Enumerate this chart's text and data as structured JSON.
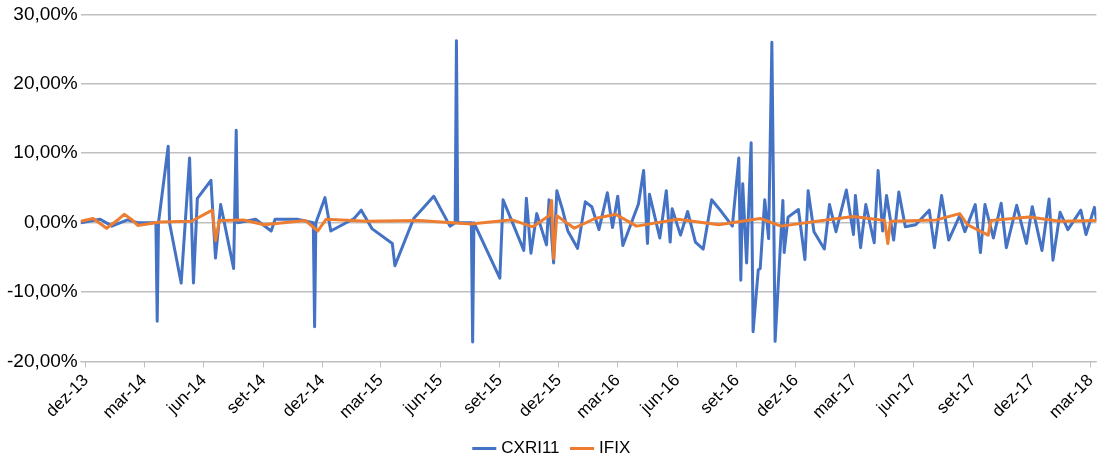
{
  "chart_data": {
    "type": "line",
    "xlim": [
      "2013-11-23",
      "2018-03-10"
    ],
    "ylim": [
      -20,
      30
    ],
    "xticks": [
      {
        "value": "2013-12-01",
        "label": "dez-13"
      },
      {
        "value": "2014-03-01",
        "label": "mar-14"
      },
      {
        "value": "2014-06-01",
        "label": "jun-14"
      },
      {
        "value": "2014-09-01",
        "label": "set-14"
      },
      {
        "value": "2014-12-01",
        "label": "dez-14"
      },
      {
        "value": "2015-03-01",
        "label": "mar-15"
      },
      {
        "value": "2015-06-01",
        "label": "jun-15"
      },
      {
        "value": "2015-09-01",
        "label": "set-15"
      },
      {
        "value": "2015-12-01",
        "label": "dez-15"
      },
      {
        "value": "2016-03-01",
        "label": "mar-16"
      },
      {
        "value": "2016-06-01",
        "label": "jun-16"
      },
      {
        "value": "2016-09-01",
        "label": "set-16"
      },
      {
        "value": "2016-12-01",
        "label": "dez-16"
      },
      {
        "value": "2017-03-01",
        "label": "mar-17"
      },
      {
        "value": "2017-06-01",
        "label": "jun-17"
      },
      {
        "value": "2017-09-01",
        "label": "set-17"
      },
      {
        "value": "2017-12-01",
        "label": "dez-17"
      },
      {
        "value": "2018-03-01",
        "label": "mar-18"
      }
    ],
    "yticks": [
      {
        "value": -20,
        "label": "-20,00%"
      },
      {
        "value": -10,
        "label": "-10,00%"
      },
      {
        "value": 0,
        "label": "0,00%"
      },
      {
        "value": 10,
        "label": "10,00%"
      },
      {
        "value": 20,
        "label": "20,00%"
      },
      {
        "value": 30,
        "label": "30,00%"
      }
    ],
    "grid": "y",
    "legend": "bottom",
    "marker": "none",
    "line_style": "solid",
    "series": [
      {
        "name": "CXRI11",
        "color": "#4472c4",
        "x": [
          "2013-11-23",
          "2013-12-23",
          "2014-01-10",
          "2014-02-03",
          "2014-02-19",
          "2014-03-19",
          "2014-03-21",
          "2014-03-23",
          "2014-04-07",
          "2014-04-09",
          "2014-04-27",
          "2014-05-10",
          "2014-05-16",
          "2014-05-22",
          "2014-06-12",
          "2014-06-19",
          "2014-06-27",
          "2014-07-17",
          "2014-07-21",
          "2014-07-23",
          "2014-08-20",
          "2014-09-13",
          "2014-09-19",
          "2014-10-23",
          "2014-11-17",
          "2014-11-19",
          "2014-11-21",
          "2014-12-05",
          "2014-12-14",
          "2015-01-19",
          "2015-01-30",
          "2015-02-16",
          "2015-03-19",
          "2015-03-23",
          "2015-04-21",
          "2015-05-22",
          "2015-06-16",
          "2015-06-24",
          "2015-06-26",
          "2015-06-28",
          "2015-07-19",
          "2015-07-21",
          "2015-07-23",
          "2015-09-01",
          "2015-09-06",
          "2015-10-08",
          "2015-10-12",
          "2015-10-19",
          "2015-10-28",
          "2015-11-12",
          "2015-11-16",
          "2015-11-23",
          "2015-11-28",
          "2015-12-07",
          "2015-12-15",
          "2015-12-30",
          "2016-01-11",
          "2016-01-21",
          "2016-02-01",
          "2016-02-14",
          "2016-02-22",
          "2016-03-01",
          "2016-03-09",
          "2016-04-02",
          "2016-04-10",
          "2016-04-16",
          "2016-04-19",
          "2016-05-05",
          "2016-05-15",
          "2016-05-21",
          "2016-05-24",
          "2016-06-06",
          "2016-06-17",
          "2016-06-29",
          "2016-07-11",
          "2016-07-24",
          "2016-08-08",
          "2016-08-25",
          "2016-09-04",
          "2016-09-07",
          "2016-09-10",
          "2016-09-16",
          "2016-09-23",
          "2016-09-26",
          "2016-10-04",
          "2016-10-07",
          "2016-10-14",
          "2016-10-20",
          "2016-10-25",
          "2016-10-30",
          "2016-11-11",
          "2016-11-13",
          "2016-11-19",
          "2016-12-05",
          "2016-12-15",
          "2016-12-20",
          "2016-12-29",
          "2017-01-14",
          "2017-01-22",
          "2017-02-01",
          "2017-02-17",
          "2017-02-28",
          "2017-03-03",
          "2017-03-11",
          "2017-03-19",
          "2017-04-01",
          "2017-04-07",
          "2017-04-14",
          "2017-04-20",
          "2017-05-01",
          "2017-05-09",
          "2017-05-19",
          "2017-06-04",
          "2017-06-25",
          "2017-07-03",
          "2017-07-14",
          "2017-07-25",
          "2017-08-11",
          "2017-08-19",
          "2017-09-04",
          "2017-09-12",
          "2017-09-19",
          "2017-10-02",
          "2017-10-14",
          "2017-10-22",
          "2017-11-07",
          "2017-11-22",
          "2017-12-01",
          "2017-12-16",
          "2017-12-27",
          "2018-01-02",
          "2018-01-13",
          "2018-01-25",
          "2018-02-14",
          "2018-02-22",
          "2018-03-07",
          "2018-03-10"
        ],
        "values": [
          0,
          0.5,
          -0.5,
          0.4,
          0,
          0,
          -14.2,
          0,
          11,
          0,
          -8.7,
          9.3,
          -8.7,
          3.5,
          6.1,
          -5.1,
          2.6,
          -6.6,
          13.3,
          0,
          0.5,
          -1.2,
          0.5,
          0.5,
          0,
          -15,
          0,
          3.6,
          -1.2,
          0.6,
          1.8,
          -0.9,
          -3,
          -6.2,
          0.6,
          3.8,
          -0.5,
          0,
          26.2,
          0,
          0,
          -17.2,
          0,
          -8,
          3.3,
          -4,
          3.5,
          -4.4,
          1.3,
          -3.2,
          3.3,
          -5.8,
          4.6,
          1.8,
          -1.2,
          -3.7,
          3,
          2.3,
          -1,
          4.3,
          -0.7,
          3.8,
          -3.3,
          2.7,
          7.5,
          -3,
          4.1,
          -2.2,
          4.6,
          -2.8,
          2,
          -1.8,
          1.6,
          -2.8,
          -3.8,
          3.3,
          1.6,
          -0.5,
          9.3,
          -8.3,
          5.6,
          -5.8,
          11.5,
          -15.7,
          -6.8,
          -6.6,
          3.3,
          -2.3,
          26,
          -17.1,
          3.2,
          -4.3,
          0.8,
          1.9,
          -5.3,
          4.6,
          -1.3,
          -3.8,
          2.6,
          -1.3,
          4.7,
          -1.7,
          3.9,
          -3.6,
          2.6,
          -2.9,
          7.5,
          -1.2,
          3.9,
          -2.5,
          4.4,
          -0.6,
          -0.3,
          1.8,
          -3.6,
          3.9,
          -2.5,
          1,
          -1.3,
          2.6,
          -4.3,
          2.6,
          -2.2,
          2.8,
          -3.6,
          2.5,
          -3,
          2.3,
          -4,
          3.4,
          -5.4,
          1.5,
          -1,
          1.8,
          -1.7,
          2.2,
          0.5
        ]
      },
      {
        "name": "IFIX",
        "color": "#ed7d31",
        "x": [
          "2013-11-23",
          "2013-12-12",
          "2014-01-02",
          "2014-01-18",
          "2014-01-29",
          "2014-02-09",
          "2014-02-19",
          "2014-03-26",
          "2014-05-13",
          "2014-06-14",
          "2014-06-19",
          "2014-06-25",
          "2014-08-01",
          "2014-09-02",
          "2014-11-05",
          "2014-11-24",
          "2014-12-07",
          "2015-02-08",
          "2015-04-29",
          "2015-07-18",
          "2015-09-20",
          "2015-10-22",
          "2015-11-16",
          "2015-11-20",
          "2015-11-23",
          "2015-11-28",
          "2015-12-25",
          "2016-01-26",
          "2016-02-27",
          "2016-03-30",
          "2016-06-02",
          "2016-08-04",
          "2016-10-07",
          "2016-11-08",
          "2017-01-11",
          "2017-02-28",
          "2017-04-17",
          "2017-04-22",
          "2017-04-26",
          "2017-07-06",
          "2017-08-11",
          "2017-08-23",
          "2017-09-24",
          "2017-09-28",
          "2017-11-26",
          "2018-01-13",
          "2018-03-10"
        ],
        "values": [
          0.2,
          0.6,
          -0.8,
          0.3,
          1.2,
          0.5,
          -0.4,
          0.1,
          0.2,
          1.8,
          -2.6,
          0.3,
          0.4,
          -0.3,
          0.3,
          -1.2,
          0.5,
          0.2,
          0.3,
          -0.2,
          0.4,
          -0.6,
          1,
          3.2,
          -5.2,
          1,
          -0.8,
          0.6,
          1.2,
          -0.5,
          0.5,
          -0.3,
          0.6,
          -0.5,
          0.3,
          0.9,
          0.3,
          -3,
          0.2,
          0.4,
          1.3,
          -0.3,
          -1.8,
          0.3,
          0.8,
          0.2,
          0.3
        ]
      }
    ]
  }
}
